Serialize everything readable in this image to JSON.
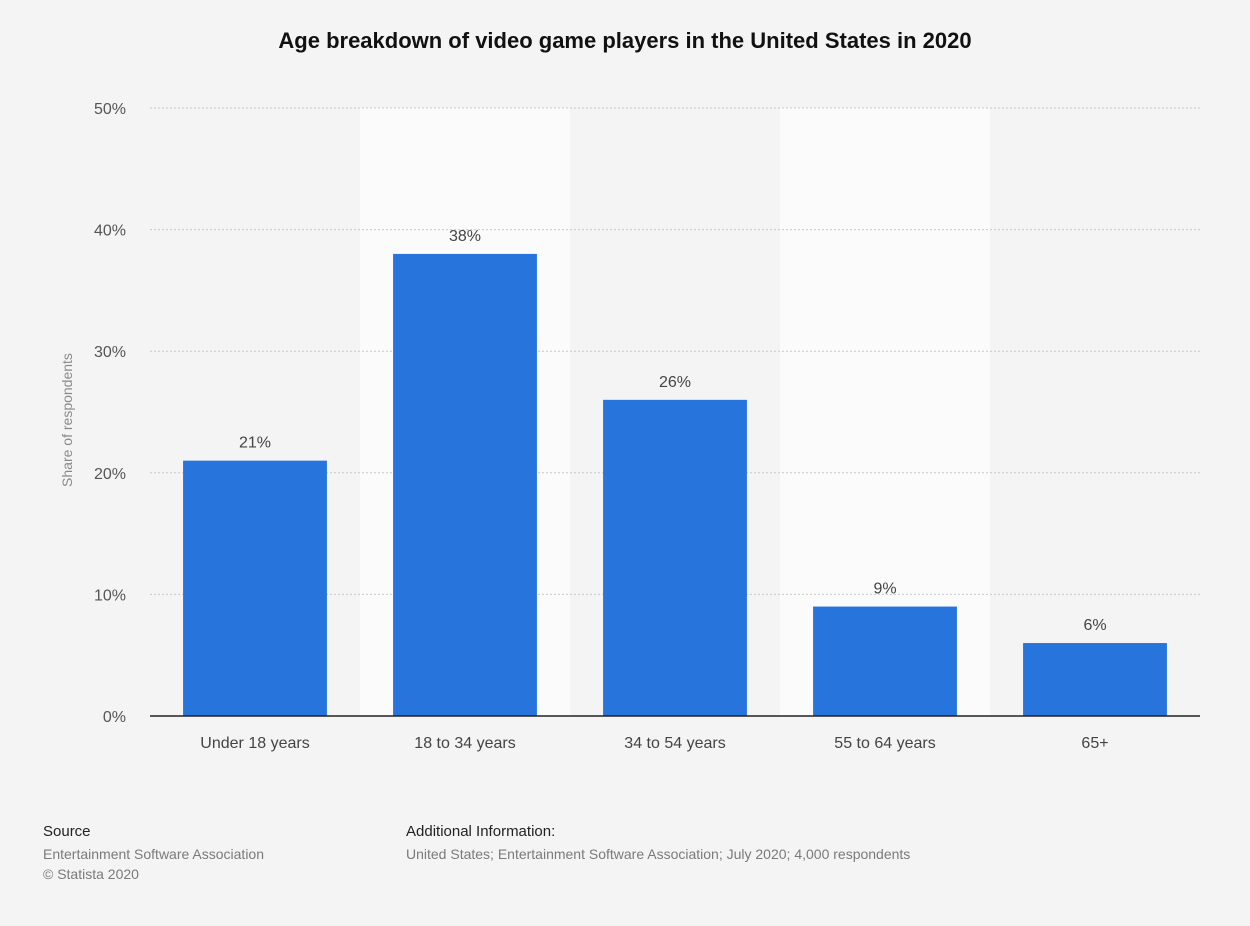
{
  "chart_data": {
    "type": "bar",
    "title": "Age breakdown of video game players in the United States in 2020",
    "ylabel": "Share of respondents",
    "xlabel": "",
    "categories": [
      "Under 18 years",
      "18 to 34 years",
      "34 to 54 years",
      "55 to 64 years",
      "65+"
    ],
    "values": [
      21,
      38,
      26,
      9,
      6
    ],
    "value_labels": [
      "21%",
      "38%",
      "26%",
      "9%",
      "6%"
    ],
    "ylim": [
      0,
      50
    ],
    "yticks": [
      0,
      10,
      20,
      30,
      40,
      50
    ],
    "ytick_labels": [
      "0%",
      "10%",
      "20%",
      "30%",
      "40%",
      "50%"
    ],
    "bar_color": "#2775dc",
    "grid": true
  },
  "footer": {
    "source_heading": "Source",
    "source_line1": "Entertainment Software Association",
    "source_line2": "© Statista 2020",
    "info_heading": "Additional Information:",
    "info_text": "United States; Entertainment Software Association; July 2020; 4,000 respondents"
  }
}
